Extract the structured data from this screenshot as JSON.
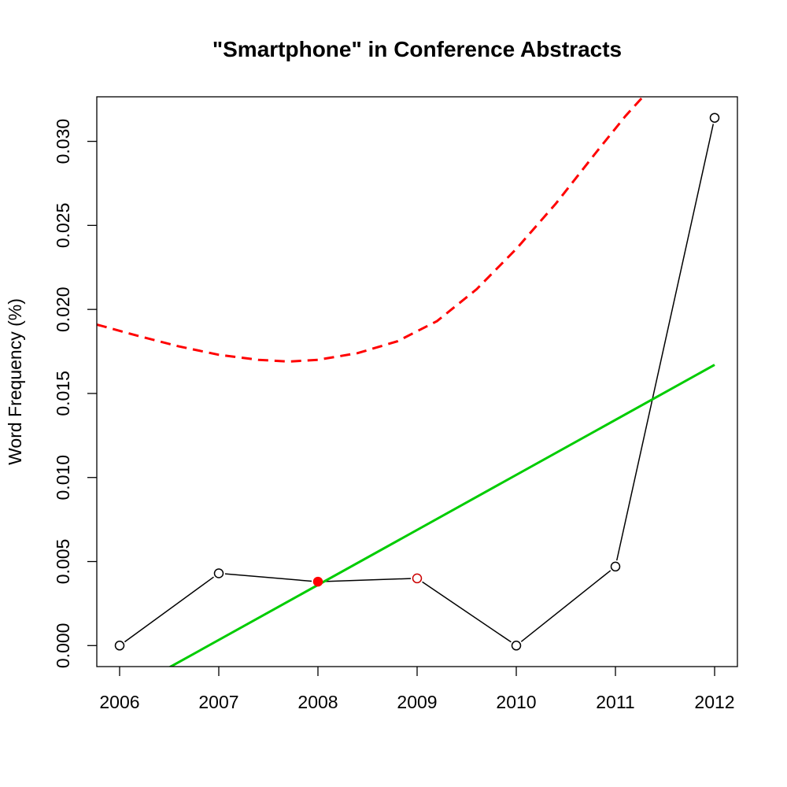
{
  "chart_data": {
    "type": "line",
    "title": "\"Smartphone\" in Conference Abstracts",
    "xlabel": "",
    "ylabel": "Word Frequency (%)",
    "xlim": [
      2005.77,
      2012.23
    ],
    "ylim": [
      -0.00125,
      0.03265
    ],
    "x_ticks": [
      "2006",
      "2007",
      "2008",
      "2009",
      "2010",
      "2011",
      "2012"
    ],
    "y_ticks": [
      "0.000",
      "0.005",
      "0.010",
      "0.015",
      "0.020",
      "0.025",
      "0.030"
    ],
    "series": [
      {
        "style": "points-line",
        "color": "#000000",
        "x": [
          2006,
          2007,
          2008,
          2009,
          2010,
          2011,
          2012
        ],
        "y": [
          0.0,
          0.0043,
          0.0038,
          0.004,
          0.0,
          0.0047,
          0.0314
        ],
        "point_colors": [
          "#000000",
          "#000000",
          "#ff0000",
          "#cc0000",
          "#000000",
          "#000000",
          "#000000"
        ],
        "point_filled": [
          false,
          false,
          true,
          false,
          false,
          false,
          false
        ]
      },
      {
        "style": "solid-line",
        "color": "#00cc00",
        "x": [
          2006.5,
          2012
        ],
        "y": [
          -0.0013,
          0.0167
        ]
      },
      {
        "style": "dashed-curve",
        "color": "#ff0000",
        "x": [
          2005.77,
          2006.2,
          2006.6,
          2007.0,
          2007.4,
          2007.7,
          2008.0,
          2008.4,
          2008.8,
          2009.2,
          2009.6,
          2010.0,
          2010.4,
          2010.8,
          2011.1,
          2011.3
        ],
        "y": [
          0.0191,
          0.0184,
          0.0178,
          0.0173,
          0.017,
          0.0169,
          0.017,
          0.0174,
          0.0181,
          0.0193,
          0.0212,
          0.0236,
          0.0263,
          0.0293,
          0.0315,
          0.0328
        ]
      }
    ]
  }
}
